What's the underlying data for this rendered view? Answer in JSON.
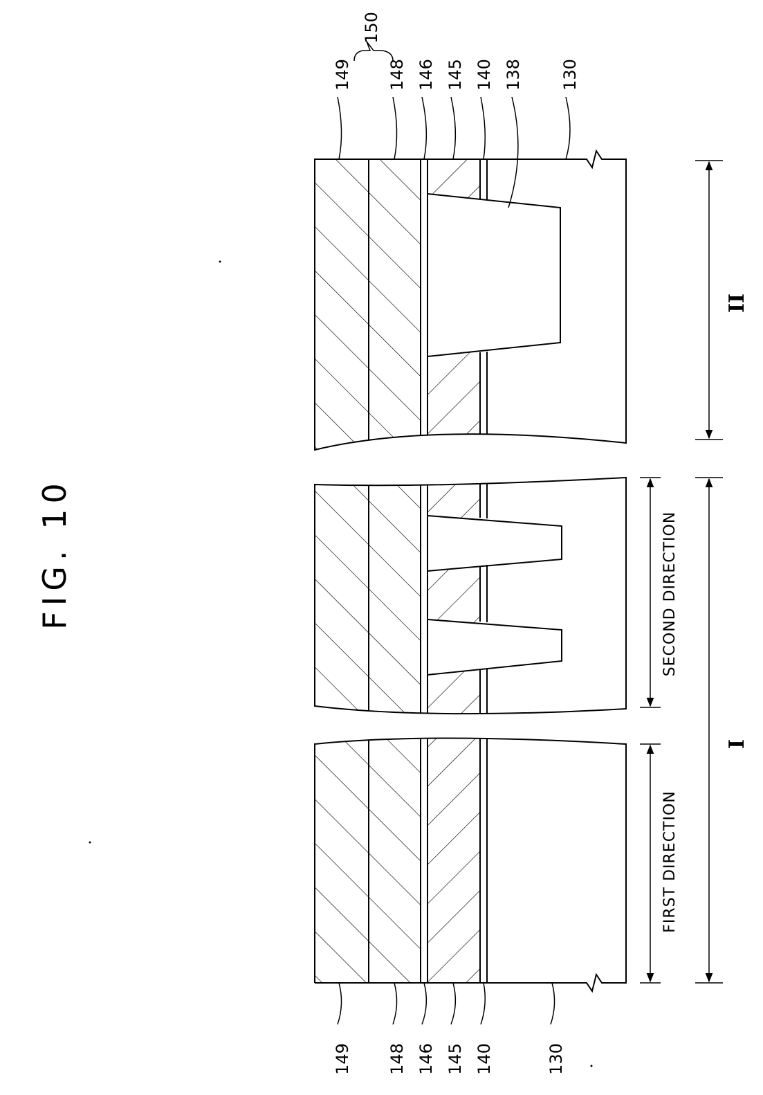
{
  "figure": {
    "title": "FIG. 10"
  },
  "labels": {
    "l149": "149",
    "l148": "148",
    "l146": "146",
    "l145": "145",
    "l140": "140",
    "l138": "138",
    "l130": "130",
    "l150": "150"
  },
  "regions": {
    "first_direction": "FIRST DIRECTION",
    "second_direction": "SECOND DIRECTION",
    "region_one": "I",
    "region_two": "II"
  }
}
